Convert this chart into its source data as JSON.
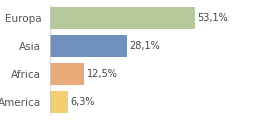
{
  "categories": [
    "Europa",
    "Asia",
    "Africa",
    "America"
  ],
  "values": [
    53.1,
    28.1,
    12.5,
    6.3
  ],
  "labels": [
    "53,1%",
    "28,1%",
    "12,5%",
    "6,3%"
  ],
  "colors": [
    "#b5c99a",
    "#7090bb",
    "#e8aa7a",
    "#f0d070"
  ],
  "background_color": "#ffffff",
  "bar_area_bg": "#ffffff",
  "xlim": [
    0,
    72
  ],
  "bar_height": 0.78,
  "label_fontsize": 7,
  "category_fontsize": 7.5
}
